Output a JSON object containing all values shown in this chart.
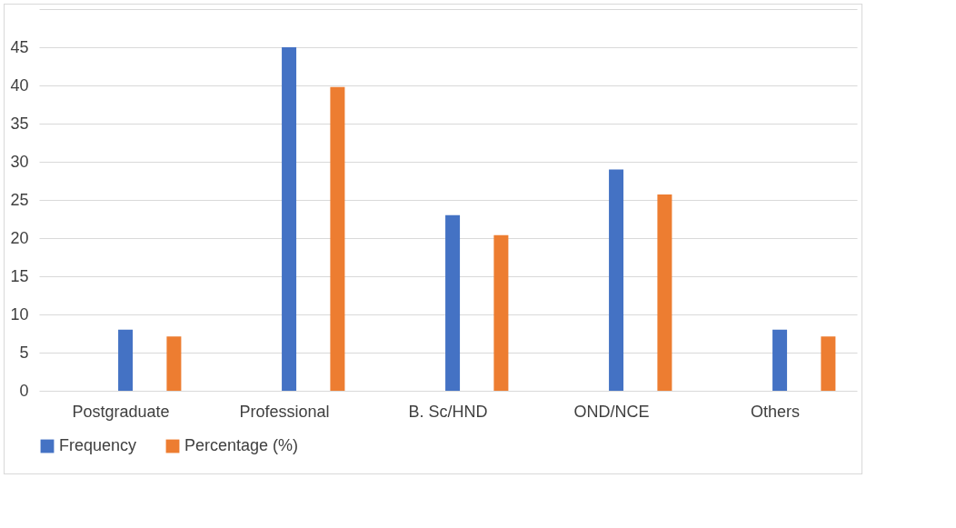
{
  "chart_data": {
    "type": "bar",
    "categories": [
      "Postgraduate",
      "Professional",
      "B. Sc/HND",
      "OND/NCE",
      "Others"
    ],
    "series": [
      {
        "name": "Frequency",
        "color": "#4472c4",
        "values": [
          8,
          45,
          23,
          29,
          8
        ]
      },
      {
        "name": "Percentage (%)",
        "color": "#ed7d31",
        "values": [
          7.1,
          39.8,
          20.4,
          25.7,
          7.1
        ]
      }
    ],
    "ylim": [
      0,
      50
    ],
    "yticks": [
      0,
      5,
      10,
      15,
      20,
      25,
      30,
      35,
      40,
      45,
      {
        "value": 50,
        "label": null
      }
    ],
    "grid": "y",
    "legend": "bottom"
  }
}
